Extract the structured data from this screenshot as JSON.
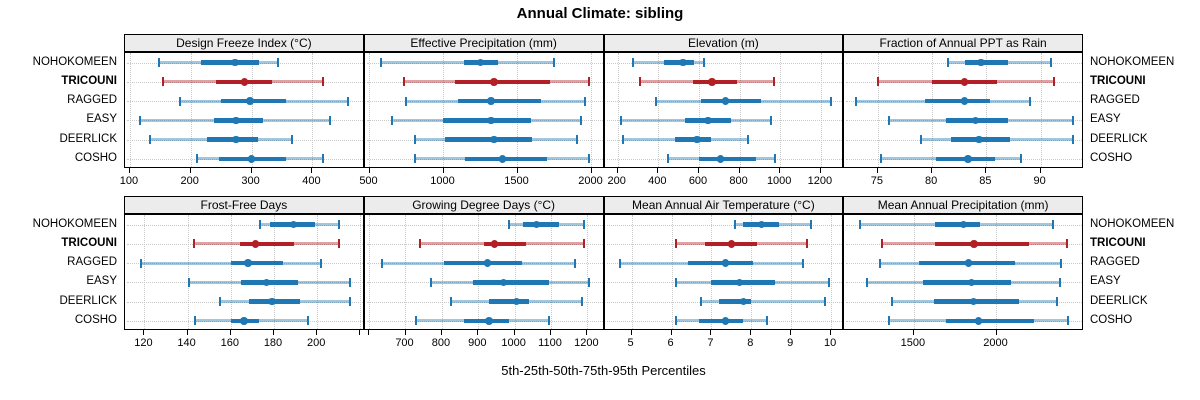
{
  "figure": {
    "title": "Annual Climate: sibling",
    "xlabel": "5th-25th-50th-75th-95th Percentiles"
  },
  "sites": [
    "NOHOKOMEEN",
    "TRICOUNI",
    "RAGGED",
    "EASY",
    "DEERLICK",
    "COSHO"
  ],
  "highlight_site": "TRICOUNI",
  "percentile_labels": [
    "5th",
    "25th",
    "50th",
    "75th",
    "95th"
  ],
  "colors": {
    "normal": "#1F78B4",
    "normal_light": "rgba(31,120,180,0.42)",
    "highlight": "#B22025",
    "highlight_light": "rgba(178,32,37,0.42)",
    "strip_bg": "#ECECEC",
    "grid": "#C9C9C9"
  },
  "chart_data": {
    "type": "dotplot-percentiles",
    "description": "Each row shows 5th-25th-50th-75th-95th percentiles: capped light line = 5th-95th, thick bar = 25th-75th, dot = median",
    "panels": [
      {
        "title": "Design Freeze Index (°C)",
        "xlim": [
          92,
          486
        ],
        "ticks": [
          100,
          200,
          300,
          400
        ],
        "unlabeled_ticks": [],
        "values": {
          "NOHOKOMEEN": [
            147,
            216,
            273,
            312,
            344
          ],
          "TRICOUNI": [
            155,
            242,
            288,
            333,
            418
          ],
          "RAGGED": [
            182,
            249,
            297,
            357,
            458
          ],
          "EASY": [
            116,
            238,
            274,
            319,
            428
          ],
          "DEERLICK": [
            133,
            227,
            274,
            311,
            366
          ],
          "COSHO": [
            211,
            246,
            300,
            357,
            417
          ]
        }
      },
      {
        "title": "Effective Precipitation (mm)",
        "xlim": [
          468,
          2088
        ],
        "ticks": [
          500,
          1000,
          1500,
          2000
        ],
        "unlabeled_ticks": [],
        "values": {
          "NOHOKOMEEN": [
            580,
            1140,
            1250,
            1370,
            1750
          ],
          "TRICOUNI": [
            730,
            1080,
            1340,
            1720,
            1985
          ],
          "RAGGED": [
            745,
            1100,
            1320,
            1660,
            1955
          ],
          "EASY": [
            650,
            1000,
            1320,
            1590,
            1930
          ],
          "DEERLICK": [
            805,
            1010,
            1340,
            1600,
            1905
          ],
          "COSHO": [
            810,
            1145,
            1400,
            1700,
            1980
          ]
        }
      },
      {
        "title": "Elevation (m)",
        "xlim": [
          135,
          1315
        ],
        "ticks": [
          200,
          400,
          600,
          800,
          1000,
          1200
        ],
        "unlabeled_ticks": [],
        "values": {
          "NOHOKOMEEN": [
            275,
            430,
            520,
            575,
            625
          ],
          "TRICOUNI": [
            310,
            570,
            665,
            785,
            970
          ],
          "RAGGED": [
            390,
            610,
            730,
            905,
            1250
          ],
          "EASY": [
            215,
            530,
            645,
            760,
            955
          ],
          "DEERLICK": [
            225,
            480,
            590,
            660,
            840
          ],
          "COSHO": [
            445,
            600,
            705,
            878,
            975
          ]
        }
      },
      {
        "title": "Fraction of Annual PPT as Rain",
        "xlim": [
          71.9,
          94.0
        ],
        "ticks": [
          75,
          80,
          85,
          90
        ],
        "unlabeled_ticks": [],
        "values": {
          "NOHOKOMEEN": [
            81.5,
            83.0,
            84.5,
            87.0,
            91.0
          ],
          "TRICOUNI": [
            75.0,
            80.0,
            83.0,
            86.0,
            91.2
          ],
          "RAGGED": [
            73.0,
            79.3,
            83.0,
            85.3,
            89.0
          ],
          "EASY": [
            76.0,
            81.3,
            84.0,
            87.0,
            93.0
          ],
          "DEERLICK": [
            79.0,
            81.7,
            84.3,
            87.2,
            93.0
          ],
          "COSHO": [
            75.3,
            80.4,
            83.3,
            85.8,
            88.2
          ]
        }
      },
      {
        "title": "Frost-Free Days",
        "xlim": [
          111,
          222
        ],
        "ticks": [
          120,
          140,
          160,
          180,
          200
        ],
        "unlabeled_ticks": [
          220
        ],
        "values": {
          "NOHOKOMEEN": [
            173.5,
            178.0,
            189.0,
            199.0,
            210.0
          ],
          "TRICOUNI": [
            143.0,
            164.0,
            171.5,
            189.0,
            210.0
          ],
          "RAGGED": [
            118.5,
            160.0,
            168.0,
            184.0,
            201.5
          ],
          "EASY": [
            140.5,
            164.5,
            176.5,
            191.0,
            215.0
          ],
          "DEERLICK": [
            155.0,
            168.5,
            179.0,
            192.0,
            215.0
          ],
          "COSHO": [
            143.5,
            160.0,
            166.0,
            173.0,
            195.5
          ]
        }
      },
      {
        "title": "Growing Degree Days (°C)",
        "xlim": [
          588,
          1247
        ],
        "ticks": [
          700,
          800,
          900,
          1000,
          1100,
          1200
        ],
        "unlabeled_ticks": [
          600
        ],
        "values": {
          "NOHOKOMEEN": [
            985,
            1022,
            1060,
            1122,
            1190
          ],
          "TRICOUNI": [
            740,
            915,
            945,
            1030,
            1190
          ],
          "RAGGED": [
            635,
            805,
            925,
            1020,
            1165
          ],
          "EASY": [
            770,
            885,
            970,
            1095,
            1205
          ],
          "DEERLICK": [
            825,
            930,
            1005,
            1040,
            1185
          ],
          "COSHO": [
            730,
            860,
            930,
            985,
            1095
          ]
        }
      },
      {
        "title": "Mean Annual Air Temperature (°C)",
        "xlim": [
          4.32,
          10.33
        ],
        "ticks": [
          5,
          6,
          7,
          8,
          9,
          10
        ],
        "unlabeled_ticks": [],
        "values": {
          "NOHOKOMEEN": [
            7.6,
            7.8,
            8.25,
            8.7,
            9.5
          ],
          "TRICOUNI": [
            6.1,
            6.85,
            7.5,
            8.15,
            9.4
          ],
          "RAGGED": [
            4.7,
            6.4,
            7.35,
            8.05,
            9.3
          ],
          "EASY": [
            6.1,
            7.0,
            7.7,
            8.6,
            9.95
          ],
          "DEERLICK": [
            6.75,
            7.2,
            7.8,
            8.0,
            9.85
          ],
          "COSHO": [
            6.1,
            6.7,
            7.35,
            7.8,
            8.4
          ]
        }
      },
      {
        "title": "Mean Annual Precipitation (mm)",
        "xlim": [
          1078,
          2530
        ],
        "ticks": [
          1500,
          2000
        ],
        "unlabeled_ticks": [],
        "values": {
          "NOHOKOMEEN": [
            1175,
            1625,
            1800,
            1900,
            2340
          ],
          "TRICOUNI": [
            1305,
            1630,
            1865,
            2200,
            2430
          ],
          "RAGGED": [
            1295,
            1530,
            1830,
            2110,
            2390
          ],
          "EASY": [
            1215,
            1555,
            1850,
            2090,
            2385
          ],
          "DEERLICK": [
            1370,
            1620,
            1860,
            2135,
            2365
          ],
          "COSHO": [
            1350,
            1695,
            1890,
            2225,
            2435
          ]
        }
      }
    ]
  }
}
